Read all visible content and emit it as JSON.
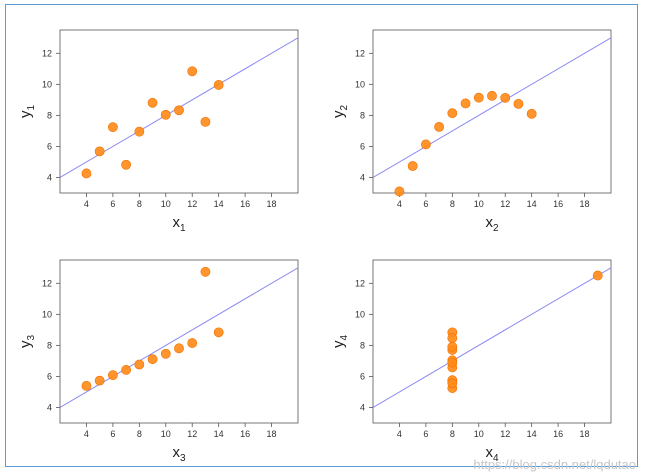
{
  "watermark": "https://blog.csdn.net/lqdutao",
  "colors": {
    "point_fill": "#ff8c1a",
    "point_stroke": "#f07000",
    "fit_line": "#8a8af5",
    "frame_border": "#5b9bd5"
  },
  "chart_data": [
    {
      "type": "scatter",
      "xlabel": "x",
      "xsub": "1",
      "ylabel": "y",
      "ysub": "1",
      "xlim": [
        2,
        20
      ],
      "ylim": [
        3,
        13.5
      ],
      "xticks": [
        4,
        6,
        8,
        10,
        12,
        14,
        16,
        18
      ],
      "yticks": [
        4,
        6,
        8,
        10,
        12
      ],
      "x": [
        10,
        8,
        13,
        9,
        11,
        14,
        6,
        4,
        12,
        7,
        5
      ],
      "y": [
        8.04,
        6.95,
        7.58,
        8.81,
        8.33,
        9.96,
        7.24,
        4.26,
        10.84,
        4.82,
        5.68
      ],
      "fit": {
        "intercept": 3.0,
        "slope": 0.5
      }
    },
    {
      "type": "scatter",
      "xlabel": "x",
      "xsub": "2",
      "ylabel": "y",
      "ysub": "2",
      "xlim": [
        2,
        20
      ],
      "ylim": [
        3,
        13.5
      ],
      "xticks": [
        4,
        6,
        8,
        10,
        12,
        14,
        16,
        18
      ],
      "yticks": [
        4,
        6,
        8,
        10,
        12
      ],
      "x": [
        10,
        8,
        13,
        9,
        11,
        14,
        6,
        4,
        12,
        7,
        5
      ],
      "y": [
        9.14,
        8.14,
        8.74,
        8.77,
        9.26,
        8.1,
        6.13,
        3.1,
        9.13,
        7.26,
        4.74
      ],
      "fit": {
        "intercept": 3.0,
        "slope": 0.5
      }
    },
    {
      "type": "scatter",
      "xlabel": "x",
      "xsub": "3",
      "ylabel": "y",
      "ysub": "3",
      "xlim": [
        2,
        20
      ],
      "ylim": [
        3,
        13.5
      ],
      "xticks": [
        4,
        6,
        8,
        10,
        12,
        14,
        16,
        18
      ],
      "yticks": [
        4,
        6,
        8,
        10,
        12
      ],
      "x": [
        10,
        8,
        13,
        9,
        11,
        14,
        6,
        4,
        12,
        7,
        5
      ],
      "y": [
        7.46,
        6.77,
        12.74,
        7.11,
        7.81,
        8.84,
        6.08,
        5.39,
        8.15,
        6.42,
        5.73
      ],
      "fit": {
        "intercept": 3.0,
        "slope": 0.5
      }
    },
    {
      "type": "scatter",
      "xlabel": "x",
      "xsub": "4",
      "ylabel": "y",
      "ysub": "4",
      "xlim": [
        2,
        20
      ],
      "ylim": [
        3,
        13.5
      ],
      "xticks": [
        4,
        6,
        8,
        10,
        12,
        14,
        16,
        18
      ],
      "yticks": [
        4,
        6,
        8,
        10,
        12
      ],
      "x": [
        8,
        8,
        8,
        8,
        8,
        8,
        8,
        19,
        8,
        8,
        8
      ],
      "y": [
        6.58,
        5.76,
        7.71,
        8.84,
        8.47,
        7.04,
        5.25,
        12.5,
        5.56,
        7.91,
        6.89
      ],
      "fit": {
        "intercept": 3.0,
        "slope": 0.5
      }
    }
  ]
}
